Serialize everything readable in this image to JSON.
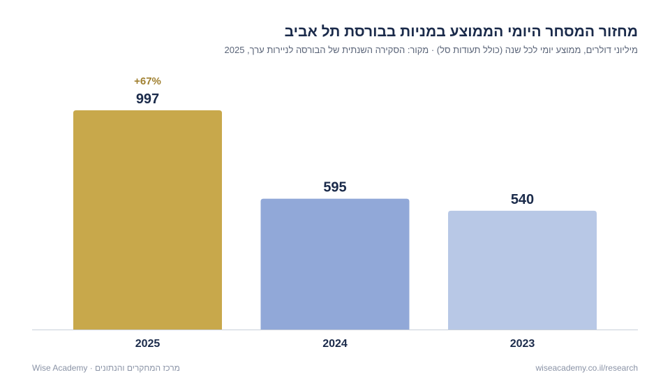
{
  "header": {
    "title": "מחזור המסחר היומי הממוצע במניות בבורסת תל אביב",
    "subtitle": "מיליוני דולרים, ממוצע יומי לכל שנה (כולל תעודות סל) · מקור: הסקירה השנתית של הבורסה לניירות ערך, 2025"
  },
  "chart_data": {
    "type": "bar",
    "categories": [
      "2025",
      "2024",
      "2023"
    ],
    "values": [
      997,
      595,
      540
    ],
    "value_labels": [
      "997",
      "595",
      "540"
    ],
    "annotations": [
      {
        "category": "2025",
        "text": "+67%"
      }
    ],
    "bar_colors": [
      "#c8a84b",
      "#91a8d8",
      "#b8c8e6"
    ],
    "annotation_color": "#a08030",
    "ylim": [
      0,
      1000
    ],
    "grid": false,
    "legend": "none"
  },
  "footer": {
    "left": "מרכז המחקרים והנתונים · Wise Academy",
    "right": "wiseacademy.co.il/research"
  }
}
